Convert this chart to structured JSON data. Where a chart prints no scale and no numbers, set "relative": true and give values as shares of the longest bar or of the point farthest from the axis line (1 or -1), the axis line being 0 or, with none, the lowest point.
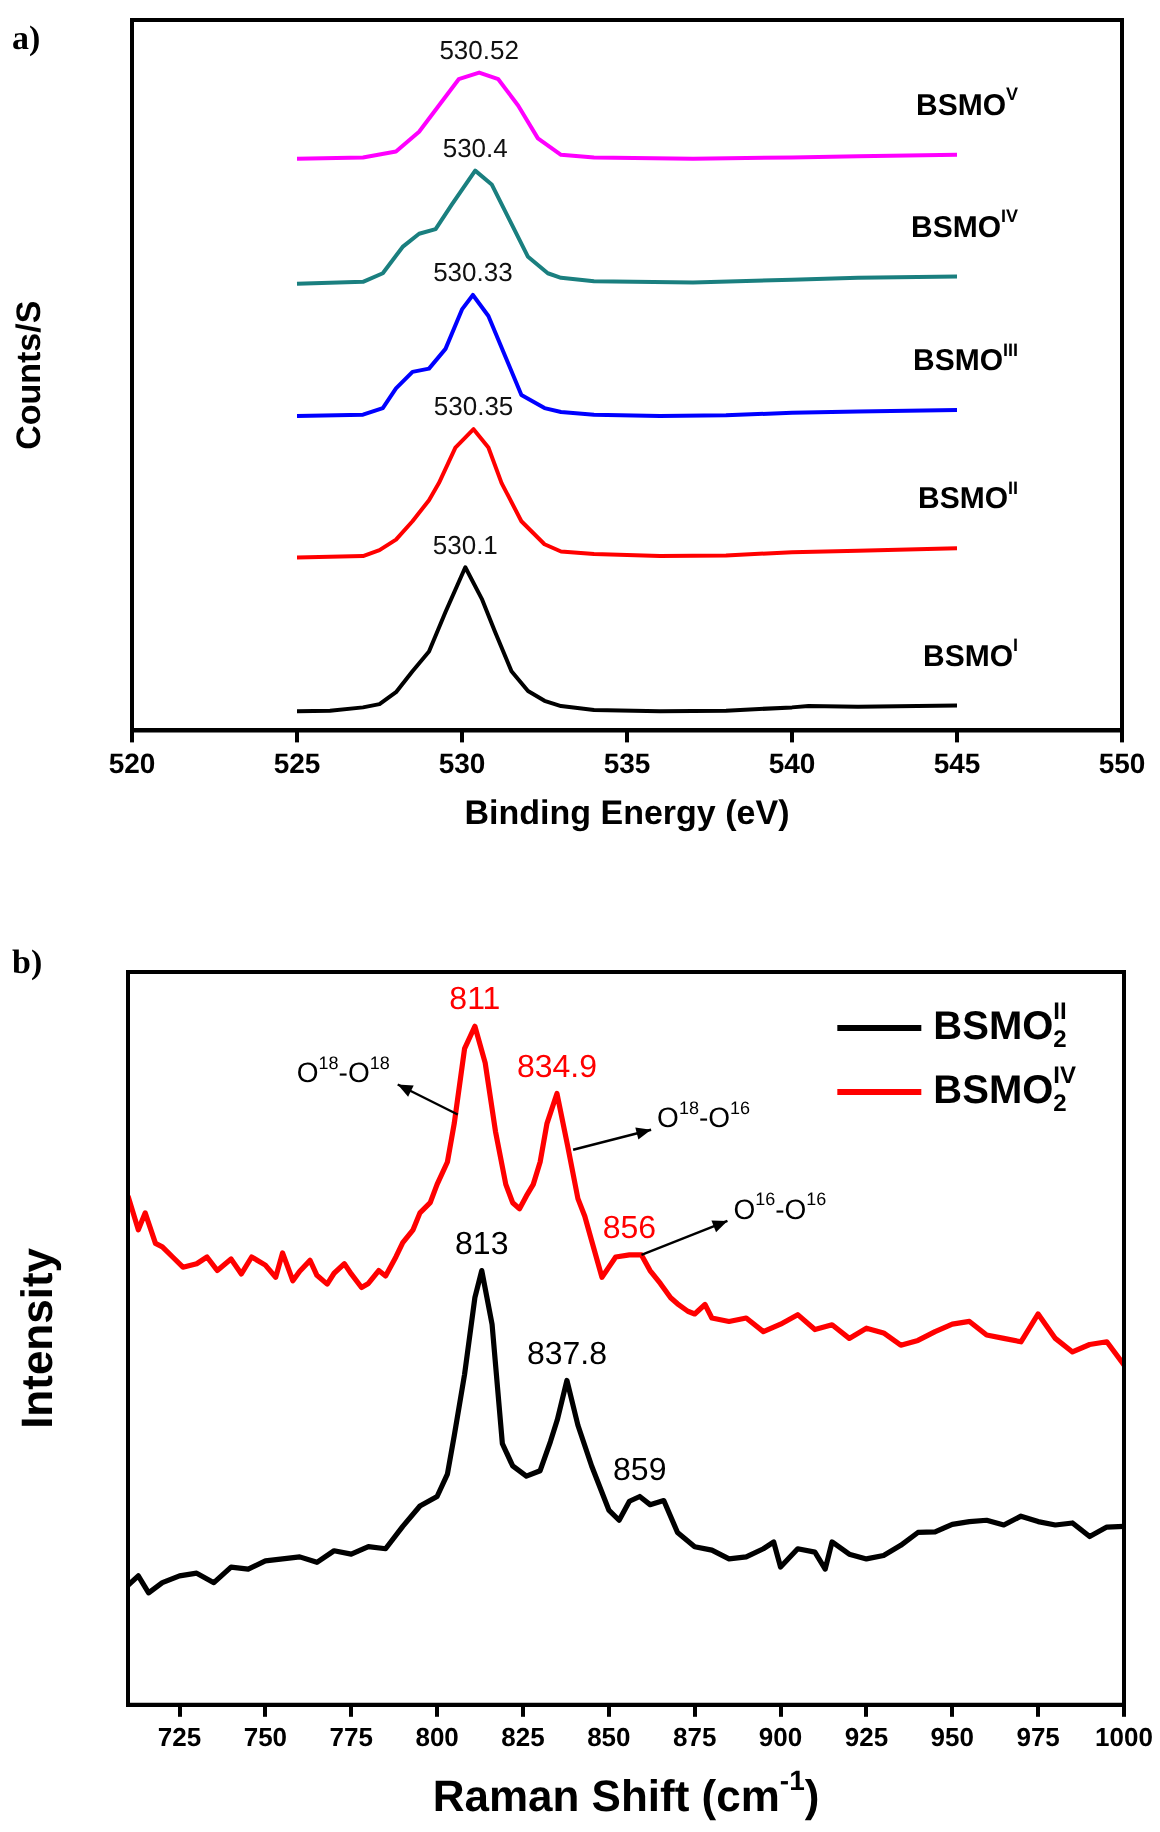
{
  "chart_data": [
    {
      "type": "line",
      "title": "a)",
      "xlabel": "Binding Energy (eV)",
      "ylabel": "Counts/S",
      "relative": true,
      "grid": false,
      "xlim": [
        520,
        550
      ],
      "xticks": [
        520,
        525,
        530,
        535,
        540,
        545,
        550
      ],
      "annotations": [
        {
          "text": "530.1",
          "x": 530.1,
          "y": 0.248
        },
        {
          "text": "530.35",
          "x": 530.35,
          "y": 0.458
        },
        {
          "text": "530.33",
          "x": 530.33,
          "y": 0.662
        },
        {
          "text": "530.4",
          "x": 530.4,
          "y": 0.851
        },
        {
          "text": "530.52",
          "x": 530.52,
          "y": 1
        }
      ],
      "series": [
        {
          "name": "BSMO$^{I}$",
          "color": "#000000",
          "x": [
            525,
            526,
            527,
            527.5,
            528,
            528.5,
            529,
            529.5,
            530.1,
            530.6,
            531,
            531.5,
            532,
            532.5,
            533,
            534,
            536,
            538,
            540,
            540.5,
            542,
            545
          ],
          "values": [
            0.029,
            0.03,
            0.035,
            0.04,
            0.058,
            0.09,
            0.12,
            0.18,
            0.248,
            0.2,
            0.15,
            0.09,
            0.06,
            0.045,
            0.037,
            0.031,
            0.029,
            0.03,
            0.035,
            0.037,
            0.036,
            0.038
          ]
        },
        {
          "name": "BSMO$^{II}$",
          "color": "#ff0000",
          "x": [
            525,
            527,
            527.5,
            528,
            528.5,
            529,
            529.3,
            529.8,
            530.35,
            530.8,
            531.2,
            531.8,
            532.5,
            533,
            534,
            536,
            538,
            540,
            542,
            545
          ],
          "values": [
            0.263,
            0.265,
            0.274,
            0.29,
            0.318,
            0.35,
            0.376,
            0.43,
            0.458,
            0.43,
            0.376,
            0.318,
            0.283,
            0.272,
            0.268,
            0.265,
            0.266,
            0.271,
            0.273,
            0.277
          ]
        },
        {
          "name": "BSMO$^{III}$",
          "color": "#0000ff",
          "x": [
            525,
            527,
            527.6,
            528,
            528.5,
            529,
            529.5,
            530,
            530.33,
            530.8,
            531.3,
            531.8,
            532.5,
            533,
            534,
            536,
            538,
            540,
            542,
            545
          ],
          "values": [
            0.478,
            0.48,
            0.49,
            0.52,
            0.545,
            0.55,
            0.58,
            0.64,
            0.662,
            0.63,
            0.57,
            0.51,
            0.49,
            0.484,
            0.48,
            0.478,
            0.479,
            0.483,
            0.485,
            0.487
          ]
        },
        {
          "name": "BSMO$^{IV}$",
          "color": "#1a7f7f",
          "x": [
            525,
            527,
            527.6,
            528.2,
            528.7,
            529.2,
            529.7,
            530.4,
            530.9,
            531.5,
            532,
            532.6,
            533,
            534,
            537,
            540,
            542,
            545
          ],
          "values": [
            0.679,
            0.682,
            0.695,
            0.735,
            0.755,
            0.762,
            0.8,
            0.851,
            0.83,
            0.77,
            0.72,
            0.695,
            0.688,
            0.683,
            0.681,
            0.685,
            0.688,
            0.69
          ]
        },
        {
          "name": "BSMO$^{V}$",
          "color": "#ff00ff",
          "x": [
            525,
            527,
            528,
            528.7,
            529.3,
            529.9,
            530.52,
            531.1,
            531.7,
            532.3,
            533,
            534,
            537,
            540,
            542,
            545
          ],
          "values": [
            0.869,
            0.871,
            0.88,
            0.91,
            0.95,
            0.99,
            1,
            0.99,
            0.95,
            0.9,
            0.875,
            0.871,
            0.869,
            0.871,
            0.873,
            0.875
          ]
        }
      ]
    },
    {
      "type": "line",
      "title": "b)",
      "xlabel": "Raman Shift (cm$^{-1}$)",
      "ylabel": "Intensity",
      "relative": true,
      "grid": false,
      "legend": "top right",
      "xlim": [
        710,
        1000
      ],
      "xticks": [
        725,
        750,
        775,
        800,
        825,
        850,
        875,
        900,
        925,
        950,
        975,
        1000
      ],
      "annotations": [
        {
          "text": "813",
          "x": 813,
          "y": 0.64
        },
        {
          "text": "837.8",
          "x": 837.8,
          "y": 0.478
        },
        {
          "text": "859",
          "x": 859,
          "y": 0.307
        },
        {
          "text": "811",
          "x": 811,
          "y": 1
        },
        {
          "text": "834.9",
          "x": 834.9,
          "y": 0.901
        },
        {
          "text": "856",
          "x": 856,
          "y": 0.663
        },
        {
          "text": "O$^{18}$-O$^{18}$",
          "x": 806,
          "y": 0.87
        },
        {
          "text": "O$^{18}$-O$^{16}$",
          "x": 839.6,
          "y": 0.818
        },
        {
          "text": "O$^{16}$-O$^{16}$",
          "x": 859.5,
          "y": 0.663
        }
      ],
      "series": [
        {
          "name": "BSMO$_{2}$$^{II}$",
          "color": "#000000",
          "x": [
            710,
            713,
            716,
            720,
            725,
            730,
            735,
            740,
            745,
            750,
            755,
            760,
            765,
            770,
            775,
            780,
            785,
            790,
            795,
            800,
            803,
            805,
            808,
            811,
            813,
            816,
            819,
            822,
            826,
            830,
            833,
            835,
            837.8,
            841,
            845,
            850,
            853,
            856,
            859,
            862,
            866,
            870,
            875,
            880,
            885,
            890,
            895,
            898,
            900,
            905,
            910,
            913,
            915,
            920,
            925,
            930,
            935,
            940,
            945,
            950,
            955,
            960,
            965,
            970,
            975,
            980,
            985,
            990,
            995,
            1000
          ],
          "values": [
            0.176,
            0.19,
            0.165,
            0.18,
            0.19,
            0.194,
            0.18,
            0.203,
            0.2,
            0.212,
            0.215,
            0.218,
            0.21,
            0.227,
            0.222,
            0.233,
            0.23,
            0.263,
            0.293,
            0.307,
            0.34,
            0.397,
            0.487,
            0.6,
            0.64,
            0.561,
            0.385,
            0.352,
            0.337,
            0.345,
            0.388,
            0.42,
            0.478,
            0.412,
            0.352,
            0.287,
            0.272,
            0.3,
            0.307,
            0.295,
            0.301,
            0.254,
            0.233,
            0.228,
            0.215,
            0.218,
            0.23,
            0.24,
            0.203,
            0.23,
            0.225,
            0.2,
            0.24,
            0.222,
            0.215,
            0.22,
            0.235,
            0.254,
            0.255,
            0.266,
            0.27,
            0.272,
            0.265,
            0.278,
            0.27,
            0.265,
            0.268,
            0.248,
            0.262,
            0.263
          ]
        },
        {
          "name": "BSMO$_{2}$$^{IV}$",
          "color": "#ff0000",
          "x": [
            710,
            713,
            715,
            718,
            720,
            723,
            726,
            730,
            733,
            736,
            740,
            743,
            746,
            750,
            753,
            755,
            758,
            760,
            763,
            765,
            768,
            770,
            773,
            775,
            778,
            780,
            783,
            785,
            788,
            790,
            793,
            795,
            798,
            800,
            803,
            805,
            808,
            811,
            814,
            817,
            820,
            822,
            824,
            826,
            828,
            830,
            832,
            834.9,
            838,
            841,
            843,
            845,
            848,
            850,
            852,
            856,
            859.5,
            862,
            865,
            868,
            870,
            873,
            875,
            878,
            880,
            885,
            890,
            895,
            900,
            905,
            910,
            915,
            920,
            925,
            930,
            935,
            940,
            945,
            950,
            955,
            960,
            965,
            970,
            975,
            980,
            985,
            990,
            995,
            1000
          ],
          "values": [
            0.75,
            0.7,
            0.725,
            0.68,
            0.675,
            0.66,
            0.645,
            0.65,
            0.66,
            0.64,
            0.657,
            0.635,
            0.66,
            0.648,
            0.63,
            0.666,
            0.625,
            0.639,
            0.655,
            0.633,
            0.62,
            0.636,
            0.65,
            0.635,
            0.615,
            0.621,
            0.64,
            0.632,
            0.66,
            0.681,
            0.7,
            0.725,
            0.74,
            0.767,
            0.8,
            0.857,
            0.967,
            1,
            0.946,
            0.845,
            0.767,
            0.74,
            0.731,
            0.75,
            0.767,
            0.8,
            0.857,
            0.901,
            0.824,
            0.746,
            0.72,
            0.684,
            0.63,
            0.645,
            0.66,
            0.663,
            0.663,
            0.64,
            0.621,
            0.6,
            0.591,
            0.58,
            0.576,
            0.59,
            0.57,
            0.565,
            0.57,
            0.55,
            0.561,
            0.575,
            0.553,
            0.56,
            0.54,
            0.555,
            0.548,
            0.53,
            0.537,
            0.55,
            0.561,
            0.565,
            0.545,
            0.54,
            0.535,
            0.576,
            0.54,
            0.52,
            0.531,
            0.535,
            0.501
          ]
        }
      ]
    }
  ]
}
